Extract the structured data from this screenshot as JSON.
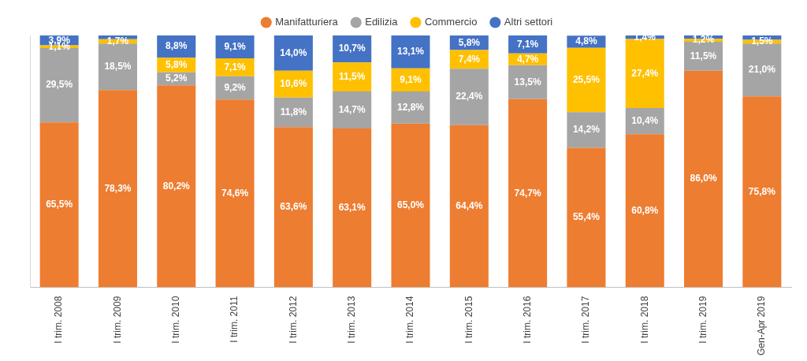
{
  "chart_data": {
    "type": "bar",
    "stacked": true,
    "legend": "top",
    "data_labels": true,
    "tick_labels": "x",
    "grid": false,
    "ylim": [
      0,
      100
    ],
    "categories": [
      "I trim. 2008",
      "I trim. 2009",
      "I trim. 2010",
      "I trim. 2011",
      "I trim. 2012",
      "I trim. 2013",
      "I trim. 2014",
      "I trim. 2015",
      "I trim. 2016",
      "I trim. 2017",
      "I trim. 2018",
      "I trim. 2019",
      "Gen-Apr 2019"
    ],
    "series": [
      {
        "name": "Manifatturiera",
        "color": "#ED7D31",
        "values": [
          65.5,
          78.3,
          80.2,
          74.6,
          63.6,
          63.1,
          65.0,
          64.4,
          74.7,
          55.4,
          60.8,
          86.0,
          75.8
        ],
        "value_labels": [
          "65,5%",
          "78,3%",
          "80,2%",
          "74,6%",
          "63,6%",
          "63,1%",
          "65,0%",
          "64,4%",
          "74,7%",
          "55,4%",
          "60,8%",
          "86,0%",
          "75,8%"
        ]
      },
      {
        "name": "Edilizia",
        "color": "#A5A5A5",
        "values": [
          29.5,
          18.5,
          5.2,
          9.2,
          11.8,
          14.7,
          12.8,
          22.4,
          13.5,
          14.2,
          10.4,
          11.5,
          21.0
        ],
        "value_labels": [
          "29,5%",
          "18,5%",
          "5,2%",
          "9,2%",
          "11,8%",
          "14,7%",
          "12,8%",
          "22,4%",
          "13,5%",
          "14,2%",
          "10,4%",
          "11,5%",
          "21,0%"
        ]
      },
      {
        "name": "Commercio",
        "color": "#FFC000",
        "values": [
          1.1,
          1.7,
          5.8,
          7.1,
          10.6,
          11.5,
          9.1,
          7.4,
          4.7,
          25.5,
          27.4,
          1.2,
          1.5
        ],
        "value_labels": [
          "1,1%",
          "1,7%",
          "5,8%",
          "7,1%",
          "10,6%",
          "11,5%",
          "9,1%",
          "7,4%",
          "4,7%",
          "25,5%",
          "27,4%",
          "1,2%",
          "1,5%"
        ]
      },
      {
        "name": "Altri settori",
        "color": "#4472C4",
        "values": [
          3.9,
          1.5,
          8.8,
          9.1,
          14.0,
          10.7,
          13.1,
          5.8,
          7.1,
          4.8,
          1.4,
          1.3,
          1.7
        ],
        "value_labels": [
          "3,9%",
          null,
          "8,8%",
          "9,1%",
          "14,0%",
          "10,7%",
          "13,1%",
          "5,8%",
          "7,1%",
          "4,8%",
          "1,4%",
          null,
          null
        ]
      }
    ]
  }
}
